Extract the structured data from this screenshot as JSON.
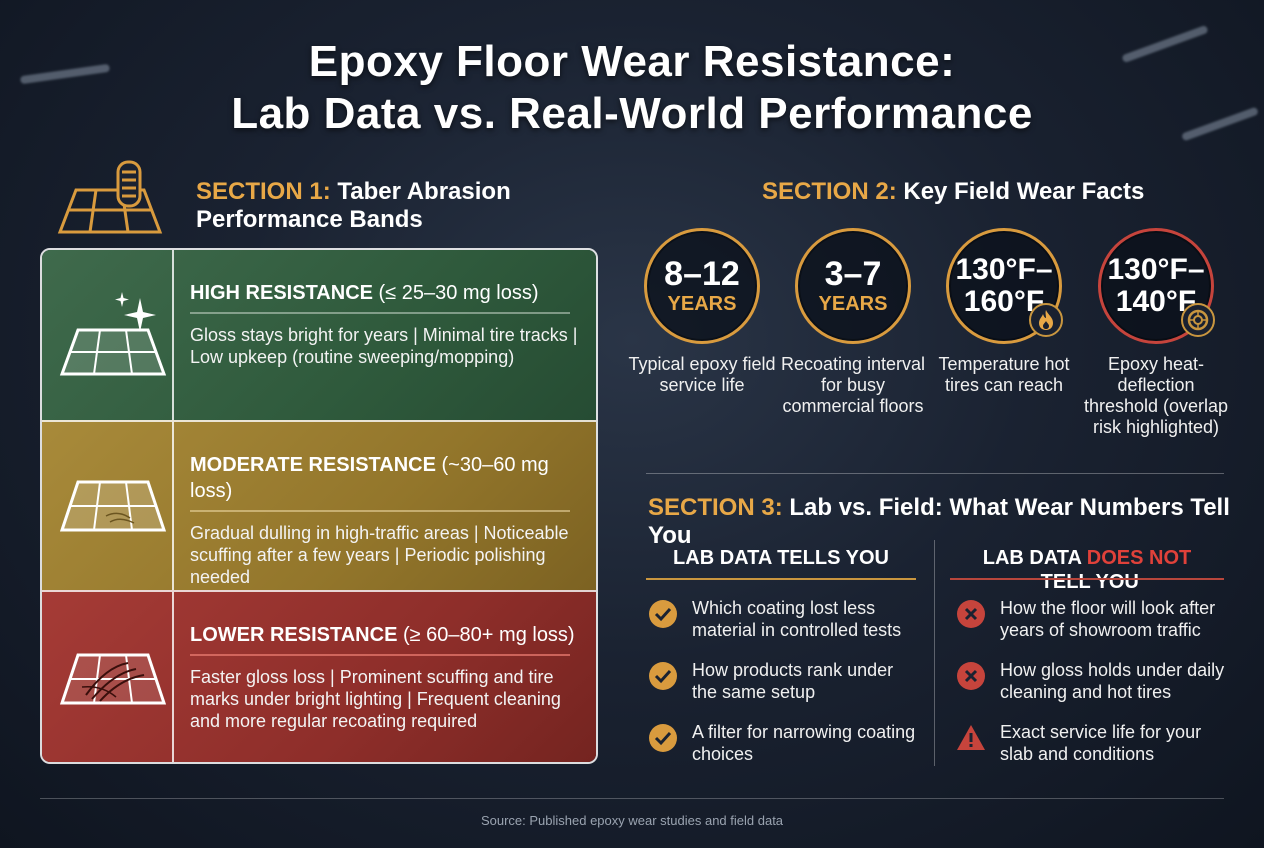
{
  "title": {
    "line1": "Epoxy Floor Wear Resistance:",
    "line2": "Lab Data vs. Real-World Performance"
  },
  "colors": {
    "accent_gold": "#e8a847",
    "red_accent": "#e0413a",
    "band_green": "#2f5a3c",
    "band_gold": "#93762b",
    "band_red": "#8e2e2a"
  },
  "section1": {
    "label": "SECTION 1:",
    "heading_line1": "Taber Abrasion",
    "heading_line2": "Performance Bands",
    "icon": "tire-floor-tiles-icon",
    "bands": [
      {
        "name": "HIGH RESISTANCE",
        "range": "(≤ 25–30 mg loss)",
        "description": "Gloss stays bright for years | Minimal tire tracks | Low upkeep (routine sweeping/mopping)",
        "icon": "sparkling-floor-tile-icon"
      },
      {
        "name": "MODERATE RESISTANCE",
        "range": "(~30–60 mg loss)",
        "description": "Gradual dulling in high-traffic areas | Noticeable scuffing after a few years | Periodic polishing needed",
        "icon": "scuffed-floor-tile-icon"
      },
      {
        "name": "LOWER RESISTANCE",
        "range": "(≥ 60–80+ mg loss)",
        "description": "Faster gloss loss | Prominent scuffing and tire marks under bright lighting | Frequent cleaning and more regular recoating required",
        "icon": "heavily-scuffed-floor-tile-icon"
      }
    ]
  },
  "section2": {
    "label": "SECTION 2:",
    "heading": "Key Field Wear Facts",
    "stats": [
      {
        "value": "8–12",
        "unit": "YEARS",
        "label": "Typical epoxy field service life"
      },
      {
        "value": "3–7",
        "unit": "YEARS",
        "label": "Recoating interval for busy commercial floors"
      },
      {
        "value_line1": "130°F–",
        "value_line2": "160°F",
        "label": "Temperature hot tires can reach",
        "icon": "flame-icon"
      },
      {
        "value_line1": "130°F–",
        "value_line2": "140°F",
        "label": "Epoxy heat-deflection threshold (overlap risk highlighted)",
        "icon": "tire-icon"
      }
    ]
  },
  "section3": {
    "label": "SECTION 3:",
    "heading": "Lab vs. Field: What Wear Numbers Tell You",
    "col_left": {
      "heading": "LAB DATA TELLS YOU",
      "items": [
        "Which coating lost less material in controlled tests",
        "How products rank under the same setup",
        "A filter for narrowing coating choices"
      ]
    },
    "col_right": {
      "heading_a": "LAB DATA ",
      "heading_b": "DOES NOT",
      "heading_c": " TELL YOU",
      "items": [
        "How the floor will look after years of showroom traffic",
        "How gloss holds under daily cleaning and hot tires",
        "Exact service life for your slab and conditions"
      ]
    }
  },
  "footer": {
    "source": "Source: Published epoxy wear studies and field data"
  }
}
